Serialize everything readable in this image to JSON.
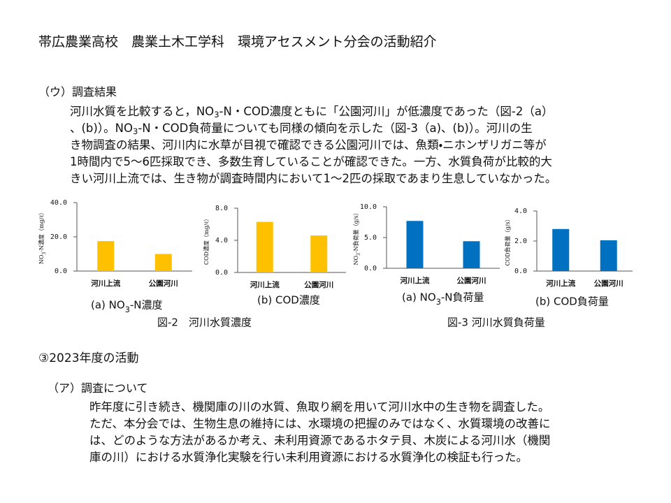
{
  "header": {
    "title": "帯広農業高校　農業土木工学科　環境アセスメント分会の活動紹介"
  },
  "section1": {
    "heading": "（ウ）調査結果",
    "lines": [
      "河川水質を比較すると，NO3-N・COD濃度ともに「公園河川」が低濃度であった（図-2（a）",
      "、(b)）。NO3-N・COD負荷量についても同様の傾向を示した（図-3（a)、(b)）。河川の生",
      "き物調査の結果、河川内に水草が目視で確認できる公園河川では、魚類・ニホンザリガニ等が",
      "1時間内で5～6匹採取でき、多数生育していることが確認できた。一方、水質負荷が比較的大",
      "きい河川上流では、生き物が調査時間内において1～2匹の採取であまり生息していなかった。"
    ]
  },
  "chart_data": [
    {
      "type": "bar",
      "caption": "(a) NO3-N濃度",
      "y_label": "NO3-N濃度（mg/ℓ）",
      "categories": [
        "河川上流",
        "公園河川"
      ],
      "values": [
        17.5,
        10
      ],
      "color": "#FFC000",
      "ylim": [
        0,
        40
      ],
      "yticks": [
        {
          "value": 0,
          "label": "0.0"
        },
        {
          "value": 20,
          "label": "20.0"
        },
        {
          "value": 40,
          "label": "40.0"
        }
      ]
    },
    {
      "type": "bar",
      "caption": "(b) COD濃度",
      "y_label": "COD濃度（mg/ℓ）",
      "categories": [
        "河川上流",
        "公園河川"
      ],
      "values": [
        6.3,
        4.6
      ],
      "color": "#FFC000",
      "ylim": [
        0,
        8
      ],
      "yticks": [
        {
          "value": 0,
          "label": "0.0"
        },
        {
          "value": 4,
          "label": "4.0"
        },
        {
          "value": 8,
          "label": "8.0"
        }
      ]
    },
    {
      "type": "bar",
      "caption": "(a) NO3-N負荷量",
      "y_label": "NO3-N負荷量（g/s）",
      "categories": [
        "河川上流",
        "公園河川"
      ],
      "values": [
        7.7,
        4.4
      ],
      "color": "#0070C0",
      "ylim": [
        0,
        10
      ],
      "yticks": [
        {
          "value": 0,
          "label": "0.0"
        },
        {
          "value": 5,
          "label": "5.0"
        },
        {
          "value": 10,
          "label": "10.0"
        }
      ]
    },
    {
      "type": "bar",
      "caption": "(b) COD負荷量",
      "y_label": "COD負荷量（g/s）",
      "categories": [
        "河川上流",
        "公園河川"
      ],
      "values": [
        2.8,
        2.05
      ],
      "color": "#0070C0",
      "ylim": [
        0,
        4
      ],
      "yticks": [
        {
          "value": 0,
          "label": "0.0"
        },
        {
          "value": 2,
          "label": "2.0"
        },
        {
          "value": 4,
          "label": "4.0"
        }
      ]
    }
  ],
  "figure_captions": [
    "図-2　河川水質濃度",
    "図-3  河川水質負荷量"
  ],
  "section2": {
    "heading": "③2023年度の活動",
    "subheading": "（ア）調査について",
    "lines": [
      "昨年度に引き続き、機関庫の川の水質、魚取り網を用いて河川水中の生き物を調査した。",
      "ただ、本分会では、生物生息の維持には、水環境の把握のみではなく、水質環境の改善に",
      "は、どのような方法があるか考え、未利用資源であるホタテ貝、木炭による河川水（機関",
      "庫の川）における水質浄化実験を行い未利用資源における水質浄化の検証も行った。"
    ]
  }
}
